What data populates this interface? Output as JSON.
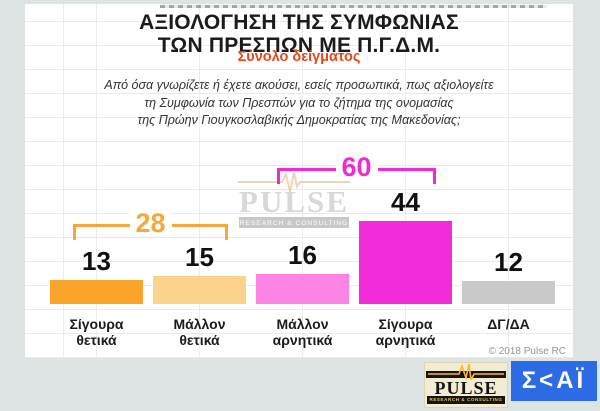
{
  "title": {
    "line1": "ΑΞΙΟΛΟΓΗΣΗ ΤΗΣ ΣΥΜΦΩΝΙΑΣ",
    "line2": "ΤΩΝ ΠΡΕΣΠΩΝ ΜΕ Π.Γ.Δ.Μ.",
    "subtitle": "Σύνολο δείγματος"
  },
  "question": {
    "line1": "Από όσα γνωρίζετε ή έχετε ακούσει, εσείς προσωπικά, πως αξιολογείτε",
    "line2": "τη Συμφωνία των Πρεσπών για το ζήτημα της ονομασίας",
    "line3": "της Πρώην Γιουγκοσλαβικής Δημοκρατίας της Μακεδονίας;"
  },
  "chart_data": {
    "type": "bar",
    "title": "ΑΞΙΟΛΟΓΗΣΗ ΤΗΣ ΣΥΜΦΩΝΙΑΣ ΤΩΝ ΠΡΕΣΠΩΝ ΜΕ Π.Γ.Δ.Μ.",
    "subtitle": "Σύνολο δείγματος",
    "categories": [
      "Σίγουρα θετικά",
      "Μάλλον θετικά",
      "Μάλλον αρνητικά",
      "Σίγουρα αρνητικά",
      "ΔΓ/ΔΑ"
    ],
    "values": [
      13,
      15,
      16,
      44,
      12
    ],
    "bar_colors": [
      "#fba42c",
      "#fbd38d",
      "#fb84e4",
      "#f32cd9",
      "#c9c9c9"
    ],
    "value_labels": "above bars",
    "xlabel": "",
    "ylabel": "",
    "ylim": [
      0,
      50
    ],
    "grid": "faint spreadsheet gridlines, no visible axes",
    "groups": [
      {
        "label": "28",
        "value": 28,
        "from": "Σίγουρα θετικά",
        "to": "Μάλλον θετικά",
        "color": "#f6a83c"
      },
      {
        "label": "60",
        "value": 60,
        "from": "Μάλλον αρνητικά",
        "to": "Σίγουρα αρνητικά",
        "color": "#f02bd5"
      }
    ]
  },
  "watermark": {
    "name": "PULSE",
    "tagline": "RESEARCH & CONSULTING"
  },
  "footer": {
    "copyright": "© 2018 Pulse RC"
  },
  "logos": {
    "pulse": {
      "name": "PULSE",
      "tagline": "RESEARCH & CONSULTING",
      "bg_color": "#f3ecd4",
      "accent_color": "#ffb52f"
    },
    "skai": {
      "text": "Σ<ΑΪ",
      "bg_color": "#2d6be5"
    }
  },
  "colors": {
    "page_background": "#dee4e4",
    "panel_background": "#ffffff",
    "subtitle": "#e2491b",
    "positive_group": "#f6a83c",
    "negative_group": "#f02bd5"
  }
}
